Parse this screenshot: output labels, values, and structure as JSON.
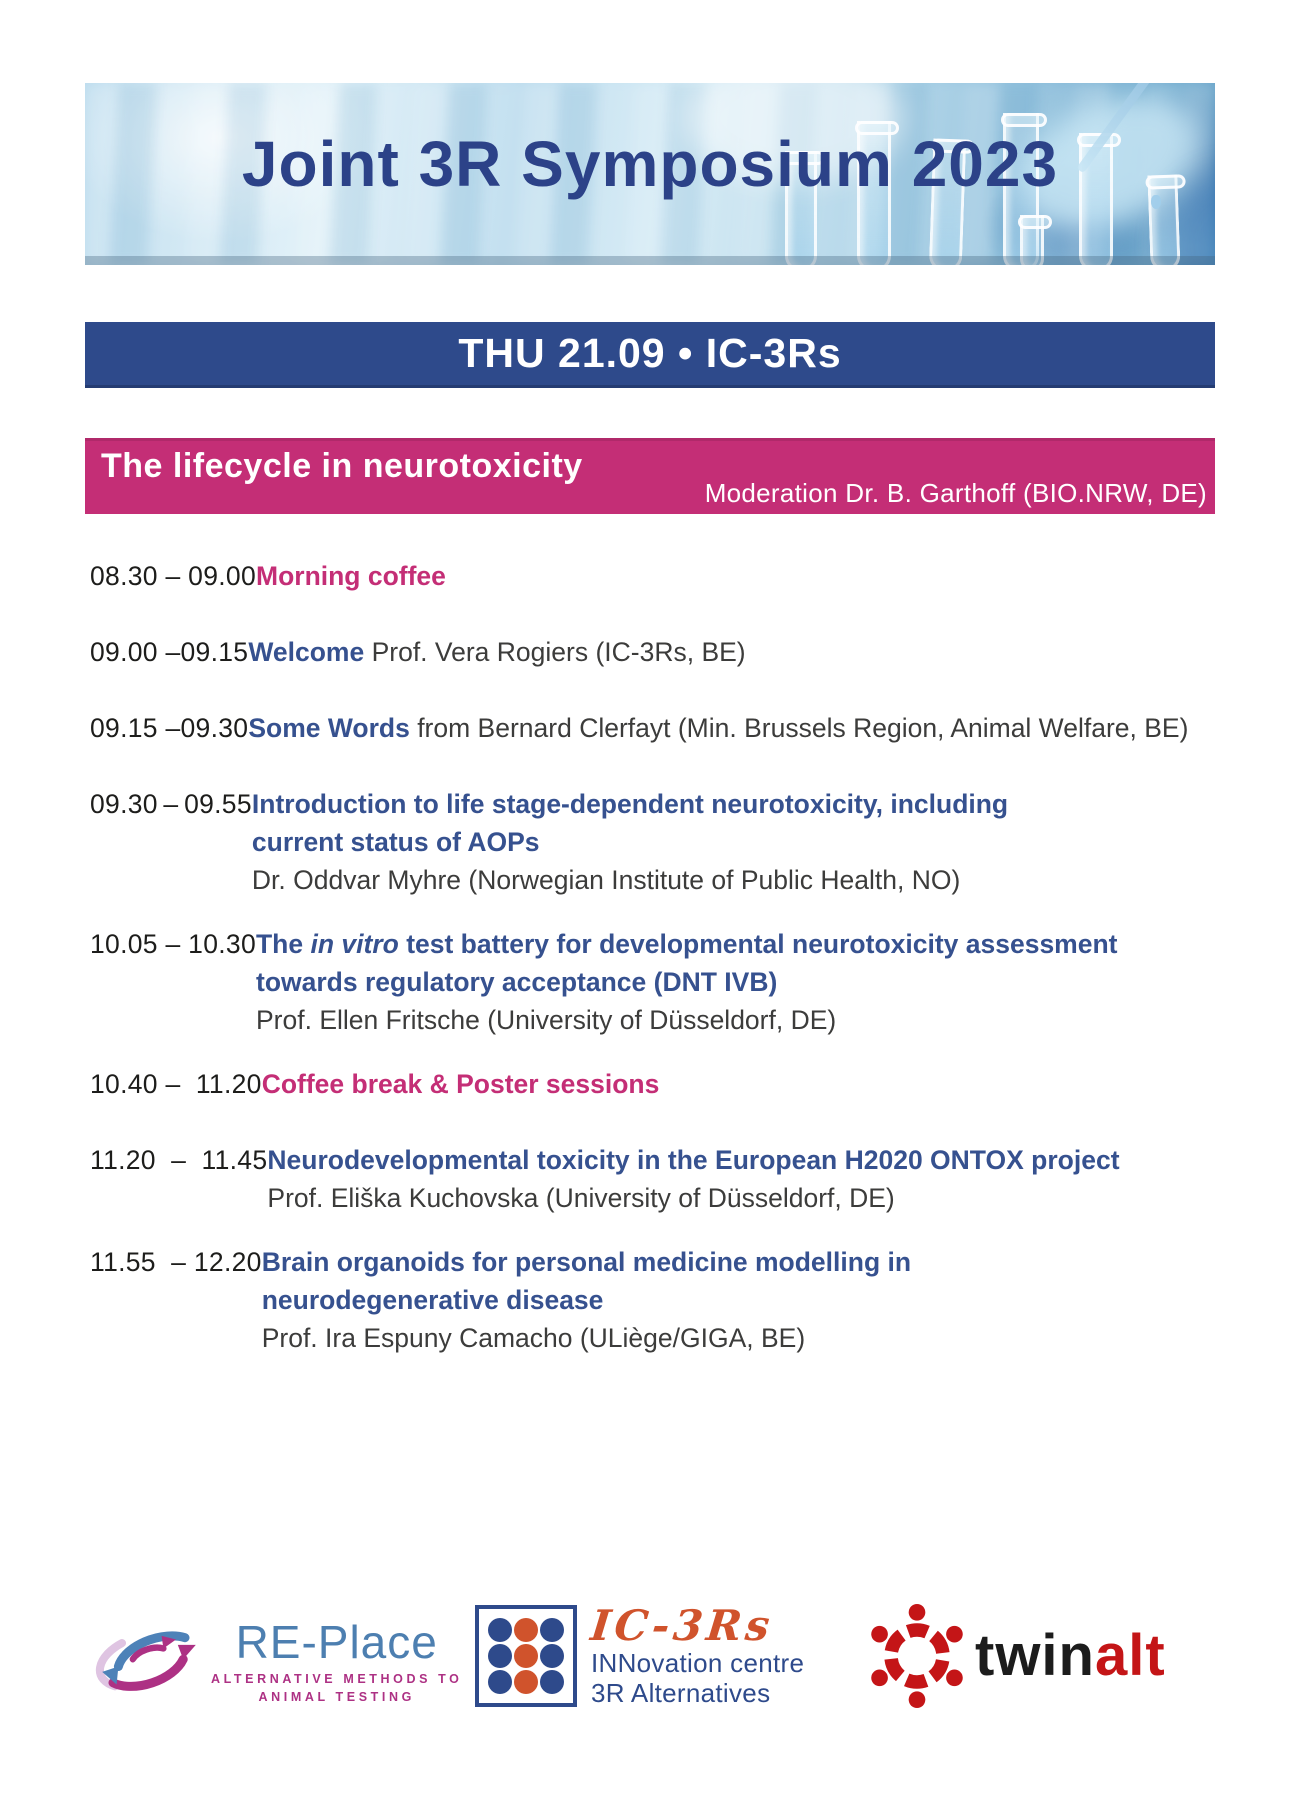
{
  "banner": {
    "title": "Joint 3R Symposium 2023"
  },
  "day_bar": {
    "label": "THU 21.09 • IC-3Rs"
  },
  "session_header": {
    "title": "The lifecycle in neurotoxicity",
    "moderation": "Moderation Dr. B. Garthoff (BIO.NRW, DE)"
  },
  "colors": {
    "navy": "#2e4a8b",
    "banner_text": "#2c4288",
    "pink": "#c42e76",
    "title_blue": "#36518f",
    "text_dark": "#3c3c3b",
    "time_black": "#1d1d1b",
    "orange": "#d0532c",
    "red": "#c41517",
    "replace_blue": "#4d7fb0",
    "replace_magenta": "#ad3184"
  },
  "schedule": [
    {
      "time": "08.30 – 09.00",
      "segments": [
        {
          "text": "Morning coffee",
          "style": "pink"
        }
      ],
      "speaker": ""
    },
    {
      "time": "09.00 –09.15",
      "segments": [
        {
          "text": "Welcome",
          "style": "blue"
        },
        {
          "text": " Prof. Vera Rogiers (IC-3Rs, BE)",
          "style": "plain"
        }
      ],
      "speaker": ""
    },
    {
      "time": "09.15 –09.30",
      "segments": [
        {
          "text": "Some Words",
          "style": "blue"
        },
        {
          "text": " from Bernard Clerfayt (Min. Brussels Region, Animal Welfare, BE)",
          "style": "plain"
        }
      ],
      "speaker": ""
    },
    {
      "time": "09.30 – 09.55",
      "segments": [
        {
          "text": "Introduction to life stage-dependent neurotoxicity, including\ncurrent status of AOPs",
          "style": "blue"
        }
      ],
      "speaker": "Dr. Oddvar Myhre (Norwegian Institute of Public Health, NO)"
    },
    {
      "time": "10.05 – 10.30",
      "segments": [
        {
          "text": "The ",
          "style": "blue"
        },
        {
          "text": "in vitro",
          "style": "blue-italic"
        },
        {
          "text": " test battery for developmental neurotoxicity assessment\ntowards regulatory acceptance (DNT IVB)",
          "style": "blue"
        }
      ],
      "speaker": "Prof. Ellen Fritsche (University of Düsseldorf, DE)"
    },
    {
      "time": "10.40 –  11.20",
      "segments": [
        {
          "text": "Coffee break & Poster sessions",
          "style": "pink"
        }
      ],
      "speaker": ""
    },
    {
      "time": "11.20  –  11.45",
      "segments": [
        {
          "text": "Neurodevelopmental toxicity in the European H2020 ONTOX project",
          "style": "blue"
        }
      ],
      "speaker": "Prof. Eliška Kuchovska (University of Düsseldorf, DE)"
    },
    {
      "time": "11.55  – 12.20",
      "segments": [
        {
          "text": "Brain organoids for personal medicine modelling in\nneurodegenerative disease",
          "style": "blue"
        }
      ],
      "speaker": "Prof. Ira Espuny Camacho (ULiège/GIGA, BE)"
    }
  ],
  "logos": {
    "replace": {
      "icon": "swirl-arrows-icon",
      "name": "RE-Place",
      "tagline_line1": "ALTERNATIVE METHODS TO",
      "tagline_line2": "ANIMAL TESTING"
    },
    "ic3rs": {
      "icon": "dot-grid-icon",
      "name": "IC-3Rs",
      "line1": "INNovation centre",
      "line2": "3R Alternatives"
    },
    "twinalt": {
      "icon": "people-circle-icon",
      "part1": "twin",
      "part2": "alt"
    }
  }
}
